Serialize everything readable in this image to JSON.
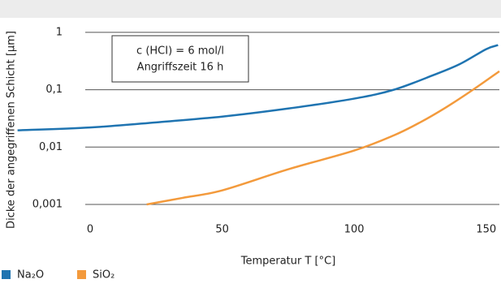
{
  "chart_data": {
    "type": "line",
    "xlabel": "Temperatur T [°C]",
    "ylabel": "Dicke der angegriffenen Schicht [µm]",
    "annotations": [
      "c (HCI) = 6 mol/l",
      "Angriffszeit 16 h"
    ],
    "series": [
      {
        "name": "Na₂O",
        "color": "#1f74b1",
        "x": [
          -27.5,
          0,
          25,
          50,
          75,
          100,
          115,
          130,
          140,
          150,
          154.5
        ],
        "values": [
          0.0196,
          0.022,
          0.027,
          0.034,
          0.047,
          0.07,
          0.1,
          0.18,
          0.28,
          0.51,
          0.6
        ]
      },
      {
        "name": "SiO₂",
        "color": "#f39a3c",
        "x": [
          21.4,
          35,
          50,
          75,
          100,
          115,
          125,
          135,
          145,
          155
        ],
        "values": [
          0.001,
          0.0013,
          0.00176,
          0.0041,
          0.0087,
          0.016,
          0.027,
          0.05,
          0.1,
          0.21
        ]
      }
    ],
    "xlim": [
      -28,
      155
    ],
    "xticks": [
      0,
      50,
      100,
      150
    ],
    "ylim": [
      0.001,
      1.4
    ],
    "yticks": [
      {
        "value": 0.001,
        "label": "0,001"
      },
      {
        "value": 0.01,
        "label": "0,01"
      },
      {
        "value": 0.1,
        "label": "0,1"
      },
      1
    ],
    "log_y": true,
    "grid": true,
    "legend": "bottom-left"
  }
}
